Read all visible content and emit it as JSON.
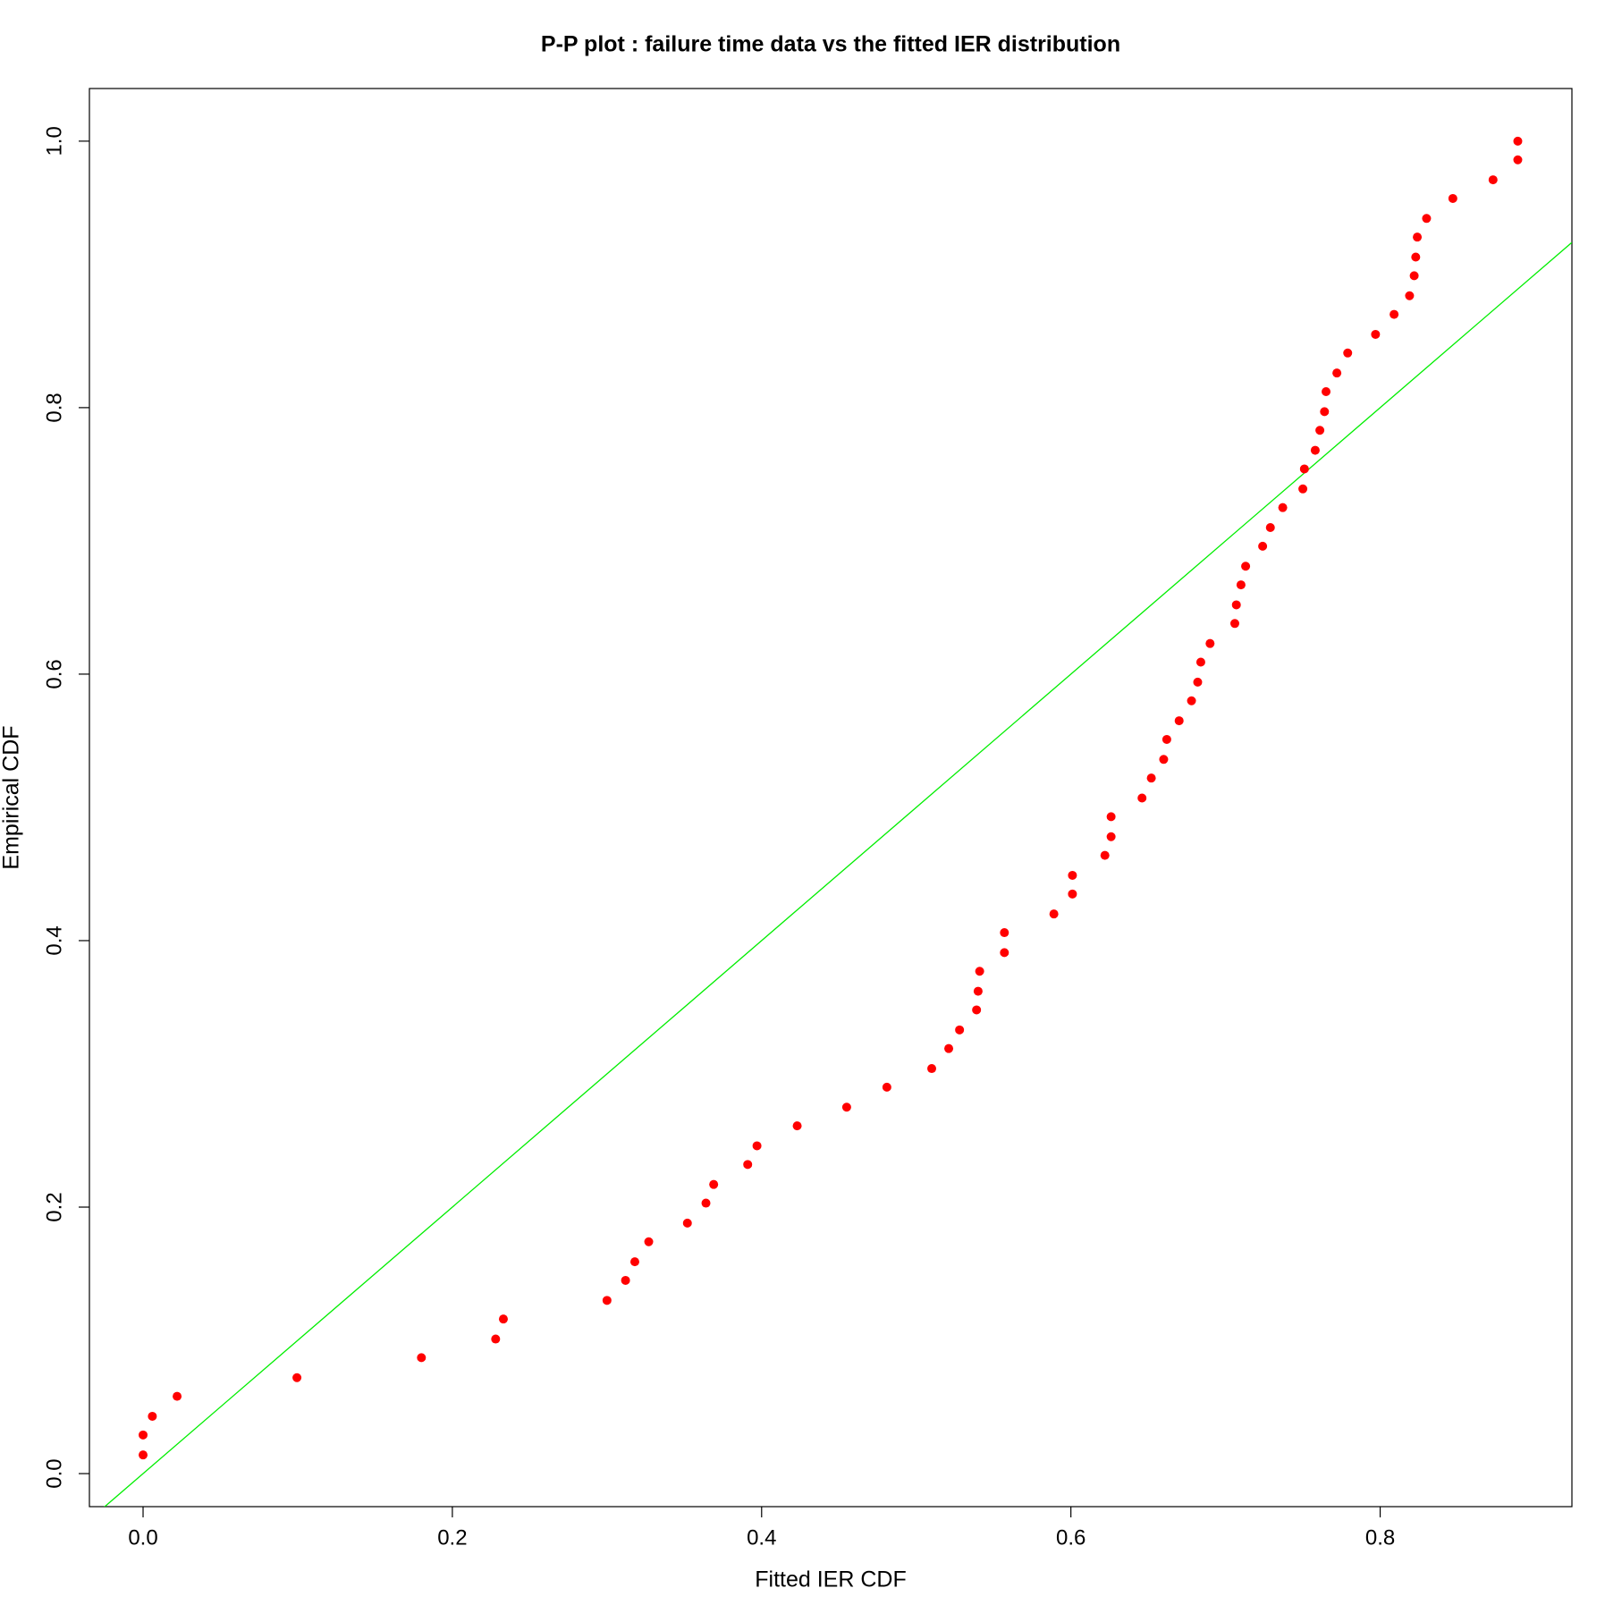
{
  "chart_data": {
    "type": "scatter",
    "title": "P-P plot : failure time data vs the fitted IER distribution",
    "x_label": "Fitted IER CDF",
    "y_label": "Empirical CDF",
    "series": [
      {
        "color": "#ff0000",
        "x": [
          0.0,
          0.0,
          0.006,
          0.022,
          0.0995,
          0.18,
          0.228,
          0.233,
          0.3,
          0.312,
          0.318,
          0.327,
          0.352,
          0.364,
          0.369,
          0.391,
          0.397,
          0.423,
          0.455,
          0.481,
          0.51,
          0.521,
          0.528,
          0.539,
          0.54,
          0.541,
          0.557,
          0.557,
          0.589,
          0.601,
          0.601,
          0.622,
          0.626,
          0.626,
          0.646,
          0.652,
          0.66,
          0.662,
          0.67,
          0.678,
          0.682,
          0.684,
          0.69,
          0.706,
          0.707,
          0.71,
          0.713,
          0.724,
          0.729,
          0.737,
          0.75,
          0.751,
          0.758,
          0.761,
          0.764,
          0.765,
          0.772,
          0.779,
          0.797,
          0.809,
          0.819,
          0.822,
          0.823,
          0.824,
          0.83,
          0.847,
          0.873,
          0.889,
          0.889
        ],
        "values": [
          0.014,
          0.029,
          0.043,
          0.058,
          0.072,
          0.087,
          0.101,
          0.116,
          0.13,
          0.145,
          0.159,
          0.174,
          0.188,
          0.203,
          0.217,
          0.232,
          0.246,
          0.261,
          0.275,
          0.29,
          0.304,
          0.319,
          0.333,
          0.348,
          0.362,
          0.377,
          0.391,
          0.406,
          0.42,
          0.435,
          0.449,
          0.464,
          0.478,
          0.493,
          0.507,
          0.522,
          0.536,
          0.551,
          0.565,
          0.58,
          0.594,
          0.609,
          0.623,
          0.638,
          0.652,
          0.667,
          0.681,
          0.696,
          0.71,
          0.725,
          0.739,
          0.754,
          0.768,
          0.783,
          0.797,
          0.812,
          0.826,
          0.841,
          0.855,
          0.87,
          0.884,
          0.899,
          0.913,
          0.928,
          0.942,
          0.957,
          0.971,
          0.986,
          1.0
        ]
      }
    ],
    "reference_line": {
      "slope": 1,
      "intercept": 0,
      "color": "#00ee00"
    },
    "xlim": [
      -0.0347,
      0.924
    ],
    "ylim": [
      -0.0248,
      1.0395
    ],
    "xticks": [
      {
        "value": 0,
        "label": "0.0"
      },
      0.2,
      0.4,
      0.6,
      0.8
    ],
    "yticks": [
      {
        "value": 0,
        "label": "0.0"
      },
      0.2,
      0.4,
      0.6,
      0.8,
      {
        "value": 1,
        "label": "1.0"
      }
    ]
  }
}
